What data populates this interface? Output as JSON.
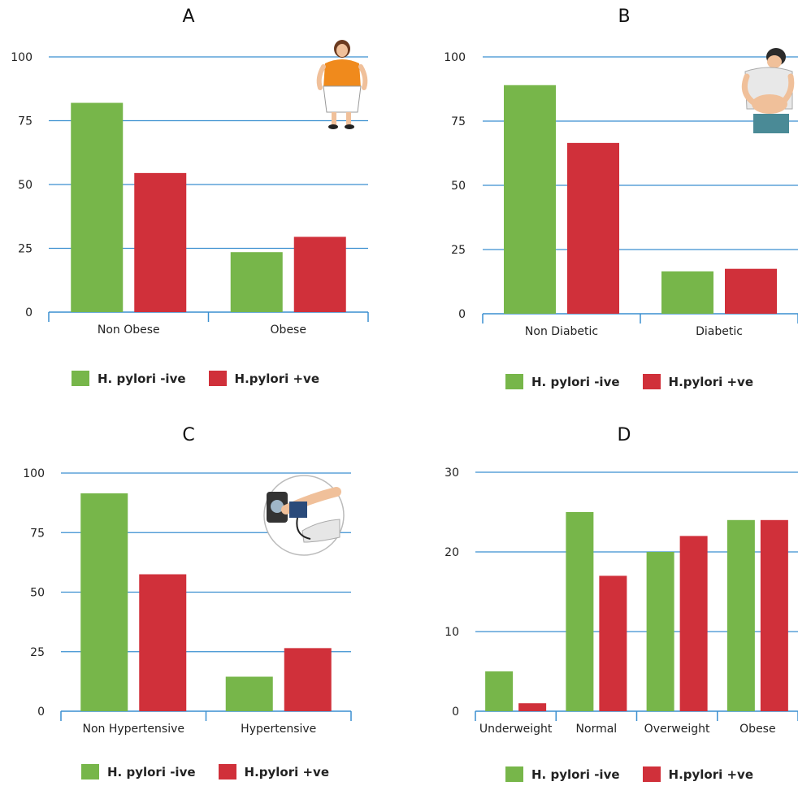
{
  "colors": {
    "negative": "#77b64a",
    "positive": "#d0303a",
    "grid": "#3a8fd0",
    "axis": "#3a8fd0"
  },
  "chart_data": [
    {
      "type": "bar",
      "title": "A",
      "categories": [
        "Non Obese",
        "Obese"
      ],
      "series": [
        {
          "name": "H. pylori -ive",
          "values": [
            82,
            23.5
          ]
        },
        {
          "name": "H.pylori +ve",
          "values": [
            54.5,
            29.5
          ]
        }
      ],
      "ylim": [
        0,
        100
      ],
      "yticks": [
        "0",
        "25",
        "50",
        "75",
        "100"
      ],
      "illustration": "obese-woman-icon"
    },
    {
      "type": "bar",
      "title": "B",
      "categories": [
        "Non Diabetic",
        "Diabetic"
      ],
      "series": [
        {
          "name": "H. pylori -ive",
          "values": [
            89,
            16.5
          ]
        },
        {
          "name": "H.pylori +ve",
          "values": [
            66.5,
            17.5
          ]
        }
      ],
      "ylim": [
        0,
        100
      ],
      "yticks": [
        "0",
        "25",
        "50",
        "75",
        "100"
      ],
      "illustration": "insulin-injection-icon"
    },
    {
      "type": "bar",
      "title": "C",
      "categories": [
        "Non Hypertensive",
        "Hypertensive"
      ],
      "series": [
        {
          "name": "H. pylori -ive",
          "values": [
            91.5,
            14.5
          ]
        },
        {
          "name": "H.pylori +ve",
          "values": [
            57.5,
            26.5
          ]
        }
      ],
      "ylim": [
        0,
        100
      ],
      "yticks": [
        "0",
        "25",
        "50",
        "75",
        "100"
      ],
      "illustration": "blood-pressure-icon"
    },
    {
      "type": "bar",
      "title": "D",
      "categories": [
        "Underweight",
        "Normal",
        "Overweight",
        "Obese"
      ],
      "series": [
        {
          "name": "H. pylori -ive",
          "values": [
            5,
            25,
            20,
            24
          ]
        },
        {
          "name": "H.pylori +ve",
          "values": [
            1,
            17,
            22,
            24
          ]
        }
      ],
      "ylim": [
        0,
        30
      ],
      "yticks": [
        "0",
        "10",
        "20",
        "30"
      ]
    }
  ]
}
